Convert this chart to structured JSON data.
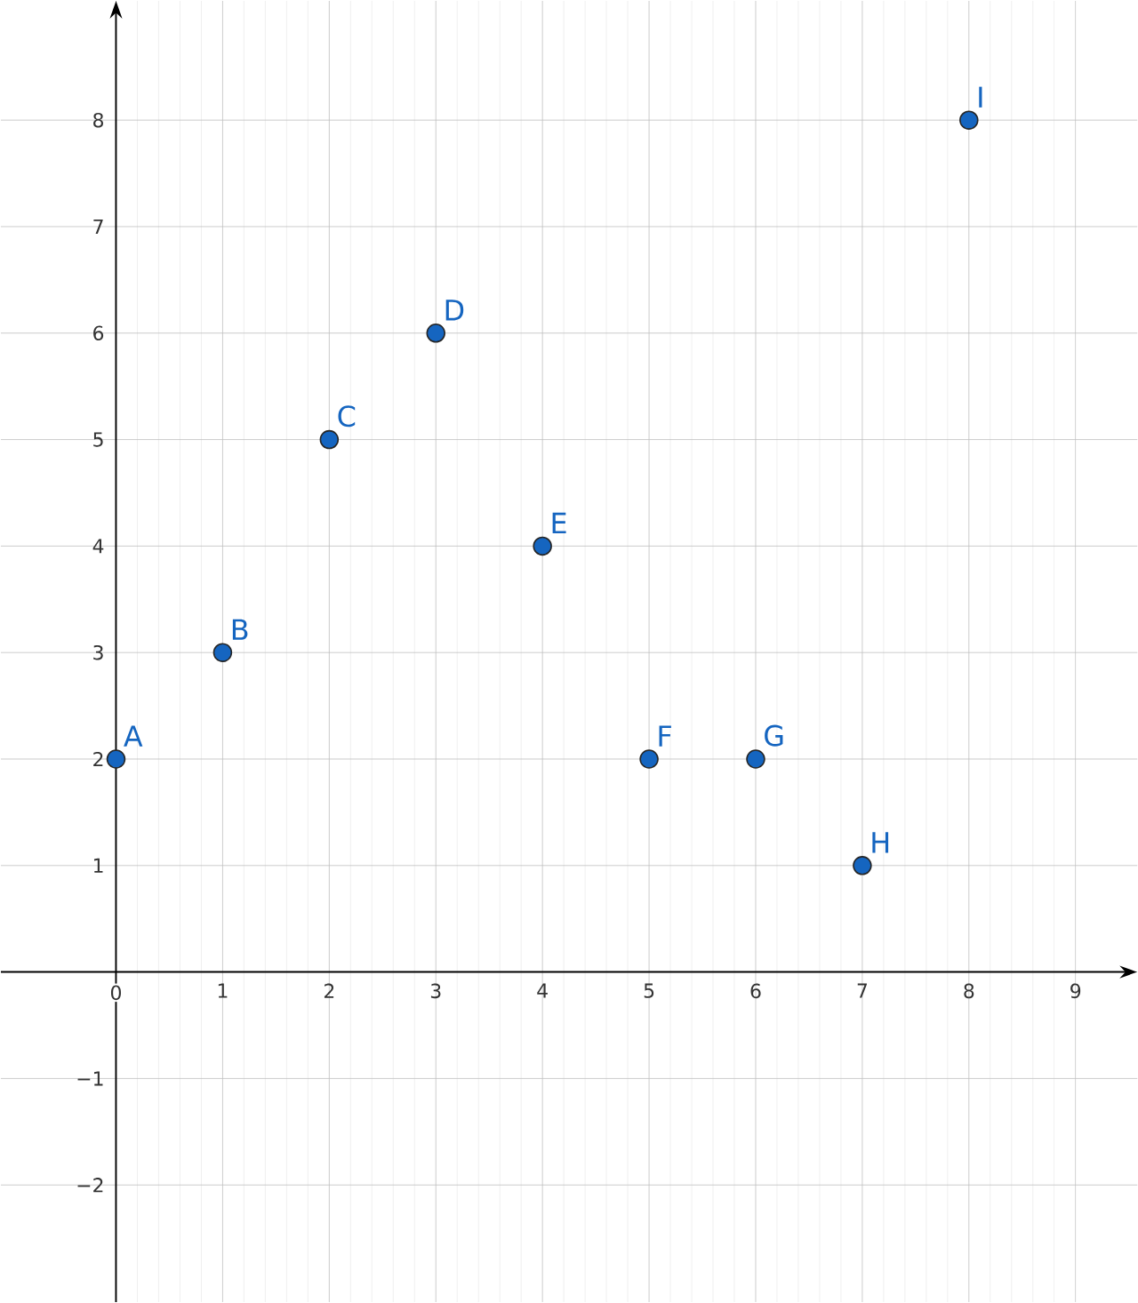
{
  "chart_data": {
    "type": "scatter",
    "x": [
      0,
      1,
      2,
      3,
      4,
      5,
      6,
      7,
      8
    ],
    "values": [
      2,
      3,
      5,
      6,
      4,
      2,
      2,
      1,
      8
    ],
    "color": "#1565c0",
    "grid": true,
    "xlim": [
      -1.08,
      9.58
    ],
    "ylim": [
      -3.1,
      9.12
    ],
    "xticks": [
      0,
      1,
      2,
      3,
      4,
      5,
      6,
      7,
      8,
      9
    ],
    "yticks": [
      {
        "value": -2,
        "label": "−2"
      },
      {
        "value": -1,
        "label": "−1"
      },
      1,
      2,
      3,
      4,
      5,
      6,
      7,
      8
    ],
    "annotations": [
      {
        "text": "A",
        "x": 0,
        "y": 2
      },
      {
        "text": "B",
        "x": 1,
        "y": 3
      },
      {
        "text": "C",
        "x": 2,
        "y": 5
      },
      {
        "text": "D",
        "x": 3,
        "y": 6
      },
      {
        "text": "E",
        "x": 4,
        "y": 4
      },
      {
        "text": "F",
        "x": 5,
        "y": 2
      },
      {
        "text": "G",
        "x": 6,
        "y": 2
      },
      {
        "text": "H",
        "x": 7,
        "y": 1
      },
      {
        "text": "I",
        "x": 8,
        "y": 8
      }
    ]
  }
}
